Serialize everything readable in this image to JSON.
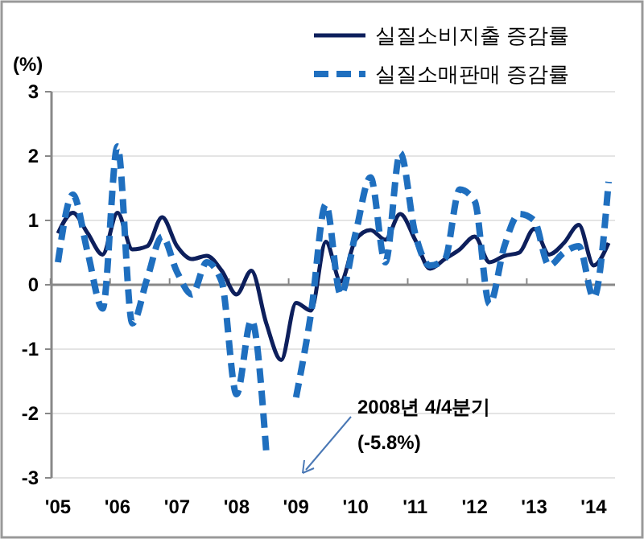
{
  "chart_data": {
    "type": "line",
    "ylabel": "(%)",
    "categories": [
      "'05",
      null,
      null,
      null,
      "'06",
      null,
      null,
      null,
      "'07",
      null,
      null,
      null,
      "'08",
      null,
      null,
      null,
      "'09",
      null,
      null,
      null,
      "'10",
      null,
      null,
      null,
      "'11",
      null,
      null,
      null,
      "'12",
      null,
      null,
      null,
      "'13",
      null,
      null,
      null,
      "'14",
      null
    ],
    "series": [
      {
        "name": "실질소비지출 증감률",
        "color": "#0d1f5c",
        "line_style": "solid",
        "values": [
          0.8,
          1.12,
          0.8,
          0.47,
          1.12,
          0.55,
          0.6,
          1.05,
          0.6,
          0.4,
          0.45,
          0.22,
          -0.15,
          0.22,
          -0.6,
          -1.17,
          -0.28,
          -0.4,
          0.67,
          0.05,
          0.7,
          0.85,
          0.7,
          1.1,
          0.7,
          0.25,
          0.4,
          0.55,
          0.75,
          0.35,
          0.45,
          0.5,
          0.87,
          0.47,
          0.65,
          0.93,
          0.3,
          0.65
        ]
      },
      {
        "name": "실질소매판매 증감률",
        "color": "#1f6fbf",
        "line_style": "dashed",
        "values": [
          0.35,
          1.4,
          0.5,
          -0.37,
          2.15,
          -0.6,
          0.1,
          0.75,
          0.2,
          -0.15,
          0.35,
          0.05,
          -1.7,
          -0.55,
          -2.6,
          null,
          -1.75,
          -0.45,
          1.25,
          -0.15,
          0.8,
          1.67,
          0.35,
          2.05,
          0.8,
          0.3,
          0.4,
          1.48,
          1.3,
          -0.3,
          0.6,
          1.1,
          1.0,
          0.3,
          0.5,
          0.6,
          -0.2,
          1.6
        ]
      }
    ],
    "ylim": [
      -3,
      3
    ],
    "yticks": [
      -3,
      -2,
      -1,
      0,
      1,
      2,
      3
    ],
    "grid": "y",
    "legend": "top right",
    "annotations": [
      "2008년 4/4분기\n(-5.8%)"
    ]
  }
}
